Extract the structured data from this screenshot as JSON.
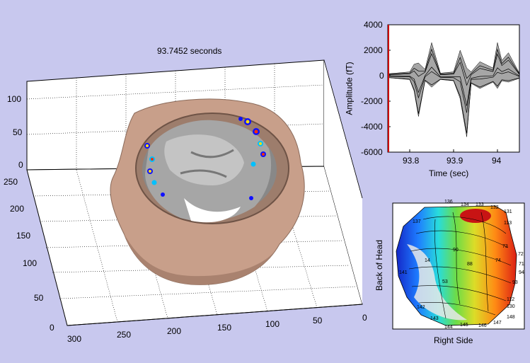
{
  "view3d": {
    "title": "93.7452 seconds",
    "z_ticks": [
      "0",
      "50",
      "100"
    ],
    "y_ticks": [
      "0",
      "50",
      "100",
      "150",
      "200",
      "250"
    ],
    "x_ticks": [
      "300",
      "250",
      "200",
      "150",
      "100",
      "50",
      "0"
    ]
  },
  "waveform": {
    "ylabel": "Amplitude (fT)",
    "xlabel": "Time (sec)",
    "y_ticks": [
      "4000",
      "2000",
      "0",
      "-2000",
      "-4000",
      "-6000"
    ],
    "x_ticks": [
      "93.8",
      "93.9",
      "94"
    ],
    "cursor_color": "#cc0000"
  },
  "topomap": {
    "ylabel": "Back of Head",
    "xlabel": "Right Side",
    "sensor_labels": [
      "136",
      "134",
      "133",
      "132",
      "131",
      "137",
      "113",
      "72",
      "71",
      "94",
      "93",
      "112",
      "148",
      "130",
      "145",
      "143",
      "146",
      "147",
      "144",
      "141",
      "142",
      "90",
      "88",
      "53",
      "73",
      "74",
      "14"
    ]
  },
  "chart_data": [
    {
      "type": "line",
      "title": "",
      "xlabel": "Time (sec)",
      "ylabel": "Amplitude (fT)",
      "xlim": [
        93.75,
        94.05
      ],
      "ylim": [
        -6000,
        4000
      ],
      "x_ticks": [
        93.8,
        93.9,
        94
      ],
      "y_ticks": [
        -6000,
        -4000,
        -2000,
        0,
        2000,
        4000
      ],
      "envelope": {
        "x": [
          93.75,
          93.8,
          93.81,
          93.82,
          93.835,
          93.85,
          93.87,
          93.9,
          93.915,
          93.93,
          93.94,
          93.96,
          93.99,
          94.0,
          94.01,
          94.025,
          94.05
        ],
        "upper": [
          150,
          300,
          900,
          1000,
          500,
          2600,
          200,
          300,
          2000,
          600,
          300,
          1100,
          600,
          2600,
          1200,
          1800,
          200
        ],
        "lower": [
          -150,
          -300,
          -1200,
          -3200,
          -400,
          -900,
          -300,
          -400,
          -1800,
          -4800,
          -600,
          -1000,
          -500,
          -1000,
          -400,
          -500,
          -200
        ]
      }
    }
  ]
}
